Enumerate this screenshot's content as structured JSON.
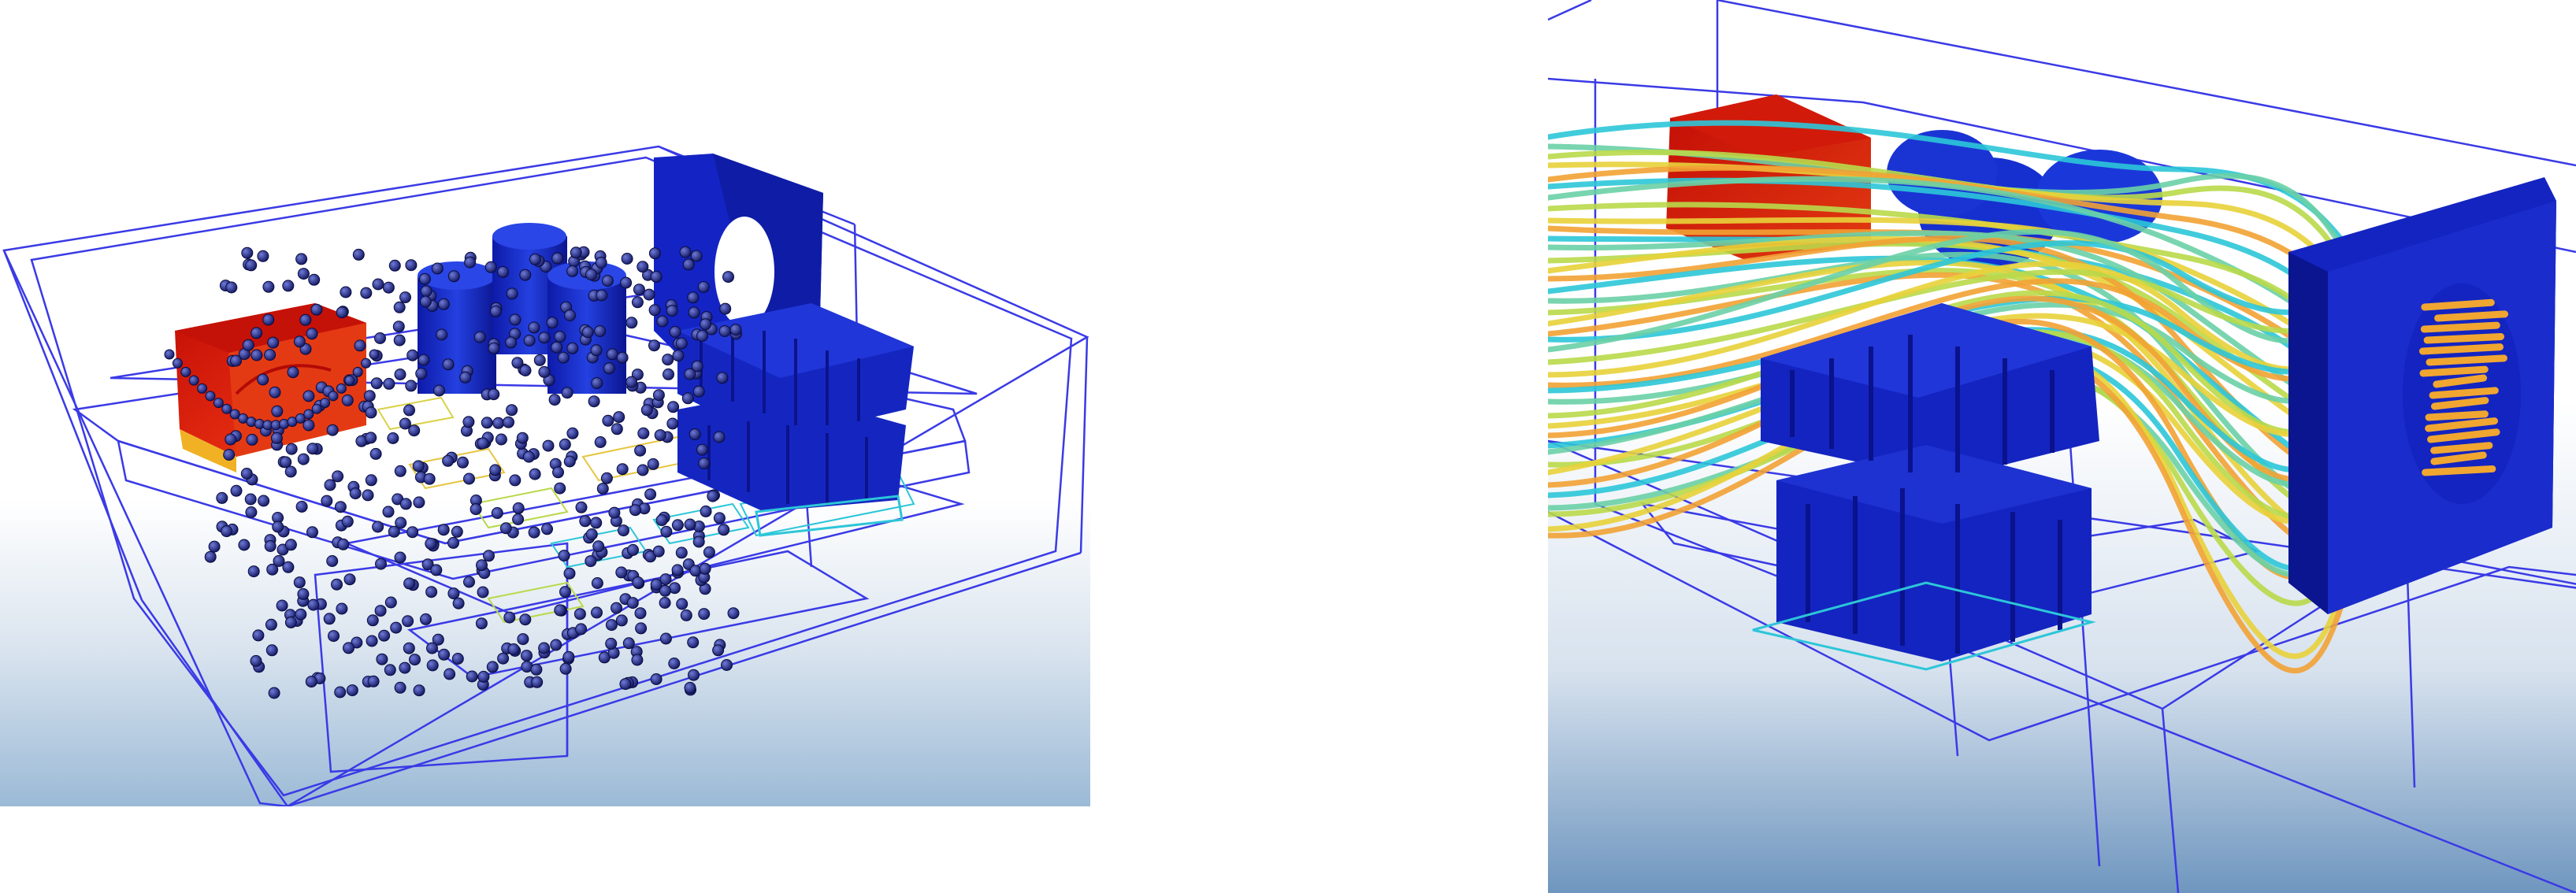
{
  "scene": {
    "left_view": {
      "description_name": "particle-tracing-render",
      "background_gradient": [
        "#ffffff",
        "#dfe8f2",
        "#9fbcd8"
      ],
      "wire_color": "#3a3ae6",
      "component_colors": {
        "hot": "#d21a0a",
        "warm": "#f2a21a",
        "cold": "#1a2bc8",
        "cold_dark": "#0c1596"
      },
      "particle_color": "#1a1f7a"
    },
    "right_view": {
      "description_name": "streamline-render",
      "background_gradient": [
        "#ffffff",
        "#e3ebf3",
        "#7ea2c6"
      ],
      "wire_color": "#3a3ae6",
      "streamline_colors": [
        "#2cc6d8",
        "#6ad0a6",
        "#b9d94a",
        "#e8d23a",
        "#f2a234"
      ]
    }
  }
}
